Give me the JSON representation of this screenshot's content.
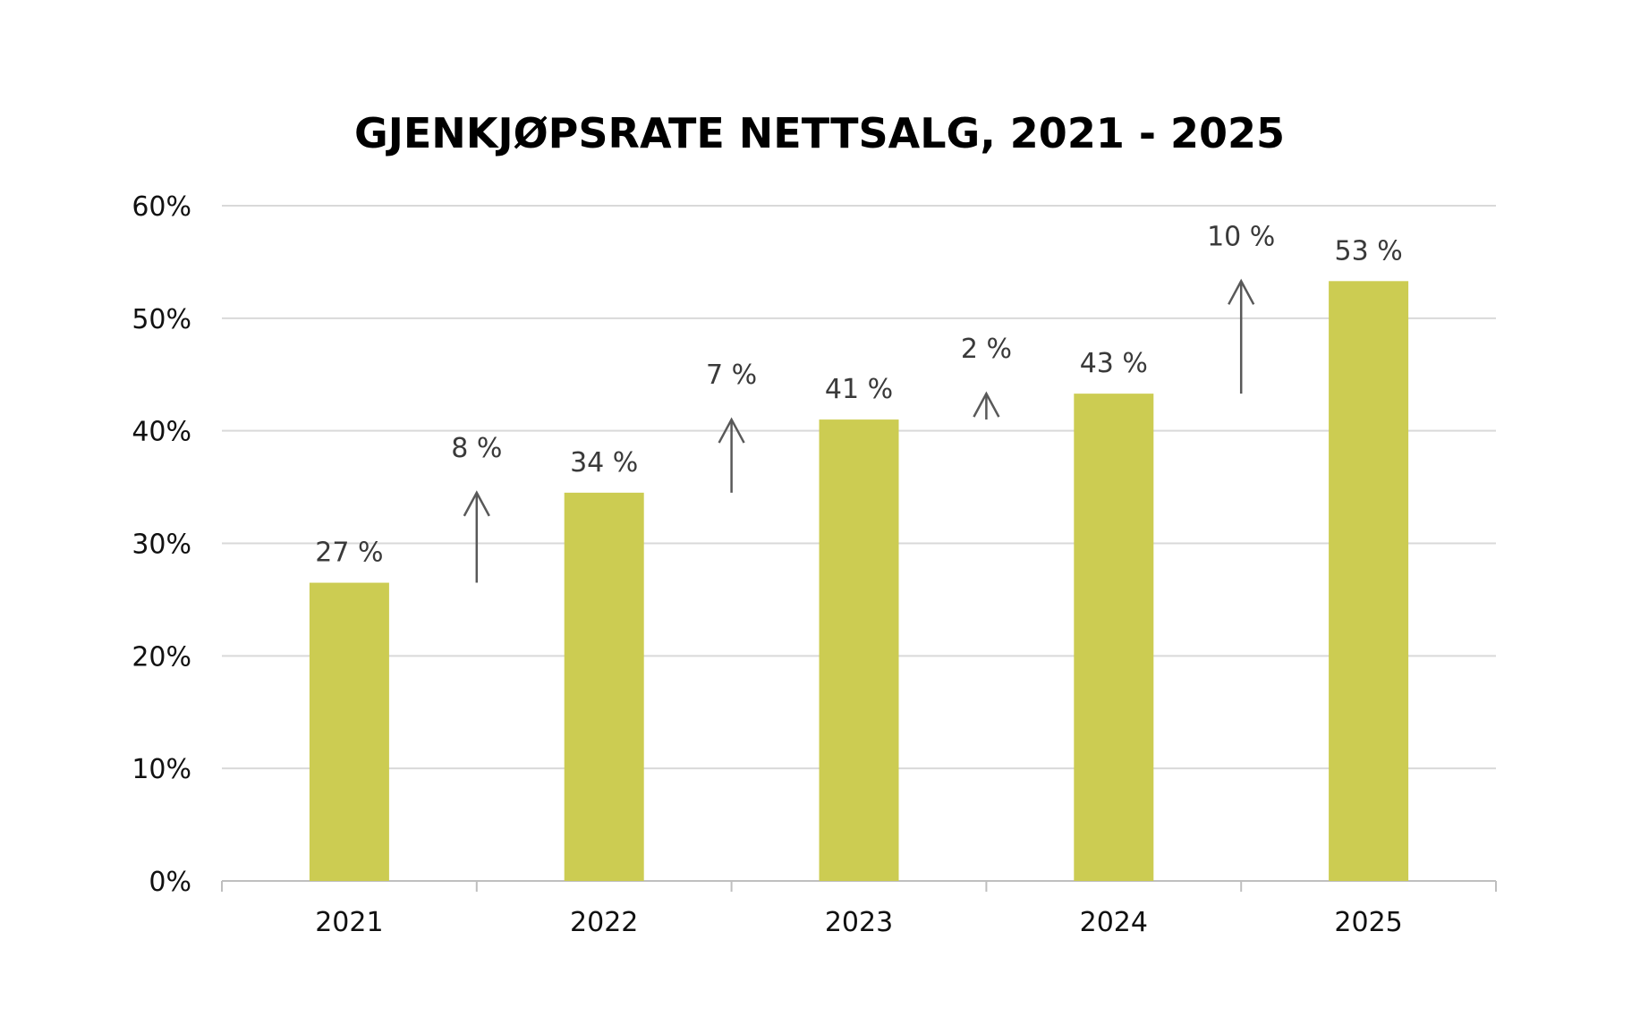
{
  "chart_data": {
    "type": "bar",
    "title": "GJENKJØPSRATE NETTSALG, 2021 - 2025",
    "xlabel": "",
    "ylabel": "",
    "ylim": [
      0,
      60
    ],
    "y_ticks": [
      0,
      10,
      20,
      30,
      40,
      50,
      60
    ],
    "y_tick_labels": [
      "0%",
      "10%",
      "20%",
      "30%",
      "40%",
      "50%",
      "60%"
    ],
    "grid": true,
    "legend": "none",
    "categories": [
      "2021",
      "2022",
      "2023",
      "2024",
      "2025"
    ],
    "values": [
      26.5,
      34.5,
      41,
      43.3,
      53.3
    ],
    "data_labels": [
      "27 %",
      "34 %",
      "41 %",
      "43 %",
      "53 %"
    ],
    "annotations": [
      {
        "between": [
          "2021",
          "2022"
        ],
        "from": 26.5,
        "to": 34.5,
        "label": "8 %"
      },
      {
        "between": [
          "2022",
          "2023"
        ],
        "from": 34.5,
        "to": 41,
        "label": "7 %"
      },
      {
        "between": [
          "2023",
          "2024"
        ],
        "from": 41,
        "to": 43.3,
        "label": "2 %"
      },
      {
        "between": [
          "2024",
          "2025"
        ],
        "from": 43.3,
        "to": 53.3,
        "label": "10 %"
      }
    ],
    "colors": {
      "bar": "#cccc52",
      "grid": "#d9d9d9",
      "axis": "#bfbfbf",
      "arrow": "#595959"
    }
  }
}
